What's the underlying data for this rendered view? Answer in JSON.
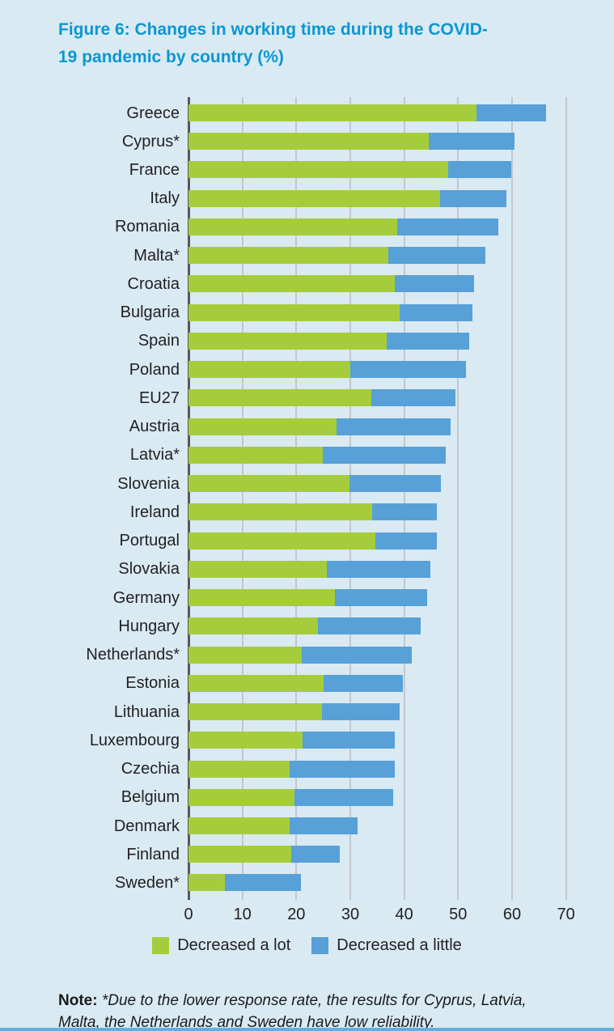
{
  "title": "Figure 6: Changes in working time during the COVID-19 pandemic by country (%)",
  "colors": {
    "page_background": "#d9eaf3",
    "title_text": "#0c96d4",
    "decreased_a_lot": "#a5cd3b",
    "decreased_a_little": "#57a0d8",
    "gridline": "#c3c7ca",
    "axis_line": "#58595b",
    "body_text": "#231f20",
    "bottom_border": "#68add9"
  },
  "legend": {
    "items": [
      {
        "label": "Decreased a lot",
        "color": "#a5cd3b"
      },
      {
        "label": "Decreased a little",
        "color": "#57a0d8"
      }
    ]
  },
  "note": {
    "label": "Note:",
    "text": "*Due to the lower response rate, the results for Cyprus, Latvia, Malta, the Netherlands and Sweden have low reliability."
  },
  "chart_data": {
    "type": "bar",
    "orientation": "horizontal",
    "stacked": true,
    "title": "Figure 6: Changes in working time during the COVID-19 pandemic by country (%)",
    "xlabel": "",
    "ylabel": "",
    "xlim": [
      0,
      70
    ],
    "x_ticks": [
      0,
      10,
      20,
      30,
      40,
      50,
      60,
      70
    ],
    "grid": true,
    "legend_position": "bottom",
    "categories": [
      "Greece",
      "Cyprus*",
      "France",
      "Italy",
      "Romania",
      "Malta*",
      "Croatia",
      "Bulgaria",
      "Spain",
      "Poland",
      "EU27",
      "Austria",
      "Latvia*",
      "Slovenia",
      "Ireland",
      "Portugal",
      "Slovakia",
      "Germany",
      "Hungary",
      "Netherlands*",
      "Estonia",
      "Lithuania",
      "Luxembourg",
      "Czechia",
      "Belgium",
      "Denmark",
      "Finland",
      "Sweden*"
    ],
    "series": [
      {
        "name": "Decreased a lot",
        "color": "#a5cd3b",
        "values": [
          53.4,
          44.5,
          48.2,
          46.7,
          38.7,
          37.0,
          38.3,
          39.2,
          36.7,
          30.0,
          33.9,
          27.5,
          24.9,
          29.8,
          34.0,
          34.7,
          25.7,
          27.2,
          24.0,
          21.0,
          25.1,
          24.7,
          21.2,
          18.7,
          19.6,
          18.8,
          19.1,
          6.7
        ]
      },
      {
        "name": "Decreased a little",
        "color": "#57a0d8",
        "values": [
          12.9,
          16.0,
          11.6,
          12.2,
          18.7,
          18.0,
          14.6,
          13.5,
          15.4,
          21.5,
          15.6,
          21.1,
          22.8,
          17.0,
          12.0,
          11.4,
          19.2,
          17.0,
          19.0,
          20.4,
          14.7,
          14.5,
          17.0,
          19.5,
          18.4,
          12.5,
          8.9,
          14.2
        ]
      }
    ]
  }
}
